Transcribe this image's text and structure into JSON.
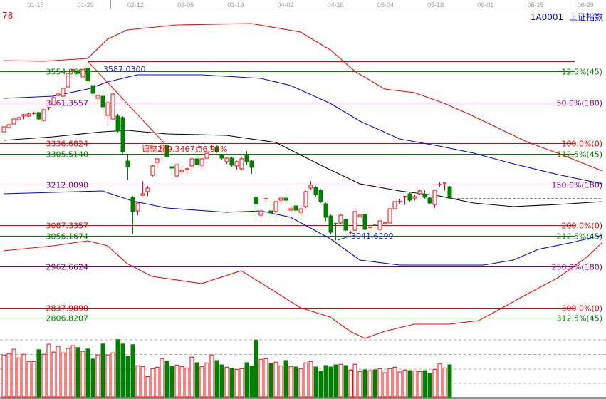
{
  "header": {
    "left_value": "78",
    "symbol": "1A0001",
    "index_name": "上证指数"
  },
  "colors": {
    "up": "#ff0000",
    "down": "#008000",
    "fib_0": "#e00000",
    "fib_12_5": "#008000",
    "fib_50": "#800080",
    "band_outer": "#ff0000",
    "band_inner": "#0000ff",
    "middle": "#000000",
    "annotation_blue": "#2020ff"
  },
  "chart_data": {
    "type": "candlestick",
    "x_tick_labels": [
      "01-15",
      "01-29",
      "02-12",
      "03-05",
      "03-19",
      "04-02",
      "04-18",
      "05-04",
      "05-18",
      "06-01",
      "06-15",
      "06-29"
    ],
    "ohlc_fields": [
      "open",
      "high",
      "low",
      "close"
    ],
    "candles": [
      [
        3371.7,
        3389,
        3367,
        3386.9
      ],
      [
        3384.7,
        3397,
        3382,
        3393.4
      ],
      [
        3395.5,
        3413,
        3393,
        3410.7
      ],
      [
        3408.5,
        3418,
        3406,
        3415
      ],
      [
        3419.4,
        3426,
        3410,
        3423.7
      ],
      [
        3419.4,
        3430,
        3417,
        3425.9
      ],
      [
        3427,
        3432,
        3424,
        3428
      ],
      [
        3430.2,
        3432,
        3408,
        3410.7
      ],
      [
        3406.4,
        3441,
        3404,
        3438.8
      ],
      [
        3443.2,
        3447,
        3437,
        3445.3
      ],
      [
        3454,
        3478,
        3452,
        3475.6
      ],
      [
        3482.1,
        3490,
        3480,
        3486.5
      ],
      [
        3479.9,
        3506,
        3477,
        3503.8
      ],
      [
        3508.1,
        3552,
        3506,
        3549.2
      ],
      [
        3559,
        3575,
        3555,
        3560.1
      ],
      [
        3557.9,
        3568,
        3546,
        3549.2
      ],
      [
        3538.4,
        3570,
        3534,
        3560.1
      ],
      [
        3564.4,
        3587.03,
        3521,
        3527.6
      ],
      [
        3512.4,
        3520,
        3484,
        3488.6
      ],
      [
        3473.5,
        3488,
        3465,
        3482.1
      ],
      [
        3479.9,
        3500,
        3425,
        3447.5
      ],
      [
        3421.5,
        3465,
        3389,
        3460.5
      ],
      [
        3410.7,
        3488,
        3406,
        3486.5
      ],
      [
        3419.4,
        3426,
        3369,
        3373.9
      ],
      [
        3415,
        3419,
        3306,
        3311.1
      ],
      [
        3283,
        3304.6,
        3226.6,
        3265.7
      ],
      [
        3172.6,
        3177,
        3062,
        3129.3
      ],
      [
        3131.5,
        3160,
        3118,
        3155.3
      ],
      [
        3179.1,
        3222,
        3177,
        3183.4
      ],
      [
        3189.9,
        3207,
        3176,
        3200.7
      ],
      [
        3239.6,
        3270,
        3236,
        3267.8
      ],
      [
        3278.6,
        3292,
        3263,
        3289.5
      ],
      [
        3311.1,
        3334,
        3283,
        3330.6
      ],
      [
        3330.6,
        3334,
        3290,
        3295.9
      ],
      [
        3265.7,
        3280,
        3237,
        3261.3
      ],
      [
        3237.5,
        3276,
        3231,
        3272.1
      ],
      [
        3250.5,
        3270,
        3244,
        3254.8
      ],
      [
        3258,
        3265,
        3239,
        3259.2
      ],
      [
        3267.8,
        3294,
        3246,
        3289.5
      ],
      [
        3289.5,
        3311,
        3268,
        3272.1
      ],
      [
        3270,
        3293,
        3257,
        3289.5
      ],
      [
        3291.6,
        3315,
        3285,
        3306.8
      ],
      [
        3324,
        3332,
        3318,
        3326.3
      ],
      [
        3324.1,
        3330,
        3308,
        3311.1
      ],
      [
        3300.3,
        3304,
        3287,
        3291.6
      ],
      [
        3280.8,
        3294,
        3274,
        3291.6
      ],
      [
        3291.6,
        3296,
        3265,
        3270
      ],
      [
        3267.8,
        3284,
        3257,
        3280.8
      ],
      [
        3259.2,
        3293,
        3256,
        3289.5
      ],
      [
        3300.3,
        3313,
        3270,
        3280.8
      ],
      [
        3283,
        3287,
        3244,
        3263.5
      ],
      [
        3172.6,
        3183,
        3112,
        3153.1
      ],
      [
        3118.5,
        3135,
        3110,
        3131.5
      ],
      [
        3167,
        3178,
        3155,
        3168.3
      ],
      [
        3131.5,
        3162,
        3105,
        3125
      ],
      [
        3129.3,
        3163,
        3110,
        3159.6
      ],
      [
        3163.9,
        3175,
        3150,
        3170.4
      ],
      [
        3170.4,
        3185,
        3160,
        3163.9
      ],
      [
        3133.6,
        3150,
        3125,
        3138
      ],
      [
        3146.6,
        3160,
        3130,
        3133.6
      ],
      [
        3127.1,
        3142,
        3117,
        3138
      ],
      [
        3144.5,
        3193,
        3140,
        3189.9
      ],
      [
        3200.7,
        3222,
        3196,
        3209.4
      ],
      [
        3202.9,
        3207,
        3175,
        3181.2
      ],
      [
        3194.2,
        3198,
        3155,
        3159.6
      ],
      [
        3153.1,
        3157,
        3100,
        3112
      ],
      [
        3116.3,
        3120,
        3062,
        3066.5
      ],
      [
        3093,
        3095,
        3041.63,
        3092.5
      ],
      [
        3094.7,
        3122,
        3090,
        3118.5
      ],
      [
        3105.5,
        3108,
        3070,
        3073
      ],
      [
        3066,
        3070,
        3060,
        3066.5
      ],
      [
        3073,
        3140,
        3070,
        3129.3
      ],
      [
        3114.1,
        3122,
        3110,
        3118.5
      ],
      [
        3120.6,
        3123,
        3072,
        3075.2
      ],
      [
        3081,
        3090,
        3062,
        3081.7
      ],
      [
        3088.2,
        3092,
        3060,
        3086
      ],
      [
        3075.2,
        3106,
        3071,
        3101.2
      ],
      [
        3094,
        3100,
        3088,
        3094.7
      ],
      [
        3094.7,
        3140,
        3092,
        3138
      ],
      [
        3138,
        3162,
        3135,
        3159.6
      ],
      [
        3159,
        3168,
        3152,
        3159.6
      ],
      [
        3172.6,
        3177,
        3150,
        3174.8
      ],
      [
        3183.4,
        3187,
        3160,
        3163.9
      ],
      [
        3170.4,
        3180,
        3163,
        3174.8
      ],
      [
        3183.4,
        3196,
        3180,
        3192.1
      ],
      [
        3181.2,
        3194,
        3168,
        3172.6
      ],
      [
        3170.4,
        3174,
        3152,
        3155.3
      ],
      [
        3150.9,
        3196,
        3140,
        3194.2
      ],
      [
        3211,
        3218,
        3205,
        3211.5
      ],
      [
        3213.7,
        3217,
        3193,
        3215.8
      ],
      [
        3205,
        3207,
        3168,
        3170.4
      ]
    ],
    "volume": [
      175,
      181,
      199,
      163,
      178,
      148,
      148,
      197,
      178,
      220,
      187,
      211,
      184,
      202,
      214,
      206,
      190,
      200,
      158,
      175,
      221,
      175,
      184,
      239,
      221,
      170,
      218,
      130,
      127,
      85,
      118,
      124,
      160,
      149,
      128,
      133,
      127,
      121,
      166,
      143,
      127,
      142,
      175,
      152,
      134,
      124,
      119,
      115,
      118,
      143,
      128,
      237,
      157,
      160,
      140,
      145,
      130,
      152,
      127,
      125,
      118,
      142,
      148,
      125,
      107,
      131,
      125,
      134,
      136,
      131,
      112,
      136,
      106,
      113,
      110,
      113,
      118,
      101,
      118,
      124,
      104,
      112,
      110,
      109,
      106,
      110,
      98,
      115,
      139,
      121,
      134
    ],
    "bands": {
      "upper_outer": [
        [
          0,
          3588.2
        ],
        [
          8,
          3586
        ],
        [
          17,
          3594.7
        ],
        [
          21,
          3653.1
        ],
        [
          25,
          3681.3
        ],
        [
          35,
          3696.4
        ],
        [
          50,
          3700.7
        ],
        [
          60,
          3674.8
        ],
        [
          66,
          3620.7
        ],
        [
          71,
          3555.7
        ],
        [
          77,
          3501.6
        ],
        [
          83,
          3490.8
        ],
        [
          89,
          3458.3
        ],
        [
          94,
          3425.9
        ],
        [
          100,
          3382.6
        ],
        [
          106,
          3339.3
        ],
        [
          112,
          3306.8
        ],
        [
          121,
          3252.7
        ]
      ],
      "upper_inner": [
        [
          0,
          3473.5
        ],
        [
          10,
          3479.9
        ],
        [
          17,
          3501.6
        ],
        [
          21,
          3523.2
        ],
        [
          27,
          3544.9
        ],
        [
          40,
          3544.9
        ],
        [
          52,
          3534.1
        ],
        [
          58,
          3512.4
        ],
        [
          66,
          3458.3
        ],
        [
          72,
          3404.2
        ],
        [
          80,
          3350.1
        ],
        [
          88,
          3328.4
        ],
        [
          95,
          3306.8
        ],
        [
          103,
          3274.3
        ],
        [
          112,
          3241.9
        ],
        [
          121,
          3213.7
        ]
      ],
      "middle": [
        [
          0,
          3345.8
        ],
        [
          10,
          3356.6
        ],
        [
          20,
          3371.7
        ],
        [
          25,
          3376.1
        ],
        [
          33,
          3365.3
        ],
        [
          45,
          3360.9
        ],
        [
          55,
          3339.3
        ],
        [
          65,
          3263.5
        ],
        [
          72,
          3213.7
        ],
        [
          80,
          3192.1
        ],
        [
          88,
          3176.9
        ],
        [
          95,
          3155.3
        ],
        [
          103,
          3144.5
        ],
        [
          112,
          3150.9
        ],
        [
          121,
          3159.6
        ]
      ],
      "lower_inner": [
        [
          0,
          3183.4
        ],
        [
          10,
          3187.7
        ],
        [
          20,
          3192.1
        ],
        [
          26,
          3161.8
        ],
        [
          33,
          3140.2
        ],
        [
          45,
          3127.1
        ],
        [
          52,
          3131.5
        ],
        [
          58,
          3112
        ],
        [
          66,
          3047.1
        ],
        [
          72,
          2982.1
        ],
        [
          80,
          2967
        ],
        [
          90,
          2967
        ],
        [
          97,
          2967
        ],
        [
          103,
          2982.1
        ],
        [
          108,
          3014.6
        ],
        [
          115,
          3036.2
        ],
        [
          121,
          3057.9
        ]
      ],
      "lower_outer": [
        [
          0,
          3010.3
        ],
        [
          10,
          3025.4
        ],
        [
          17,
          3040.6
        ],
        [
          21,
          3025.4
        ],
        [
          25,
          2971.3
        ],
        [
          30,
          2932.3
        ],
        [
          40,
          2910.7
        ],
        [
          48,
          2949.7
        ],
        [
          55,
          2884.7
        ],
        [
          60,
          2837.1
        ],
        [
          66,
          2809
        ],
        [
          70,
          2765.7
        ],
        [
          73,
          2744.1
        ],
        [
          77,
          2765.7
        ],
        [
          83,
          2787.3
        ],
        [
          90,
          2787.3
        ],
        [
          96,
          2798.1
        ],
        [
          100,
          2830.6
        ],
        [
          106,
          2880.4
        ],
        [
          112,
          2928
        ],
        [
          118,
          2993
        ],
        [
          121,
          3036.2
        ]
      ]
    },
    "last_price_line": 3170.4,
    "fib_levels": [
      {
        "price": 3586.03,
        "left_label": "",
        "right_label": "",
        "kind": "fib_0"
      },
      {
        "price": 3554.8607,
        "left_label": "3554.8607",
        "right_label": "12.5%(45)",
        "kind": "fib_12_5"
      },
      {
        "price": 3461.3557,
        "left_label": "3461.3557",
        "right_label": "50.0%(180)",
        "kind": "fib_50"
      },
      {
        "price": 3336.6824,
        "left_label": "3336.6824",
        "right_label": "100.0%(0)",
        "kind": "fib_0"
      },
      {
        "price": 3305.514,
        "left_label": "3305.5140",
        "right_label": "112.5%(45)",
        "kind": "fib_12_5"
      },
      {
        "price": 3212.009,
        "left_label": "3212.0090",
        "right_label": "150.0%(180)",
        "kind": "fib_50"
      },
      {
        "price": 3087.3357,
        "left_label": "3087.3357",
        "right_label": "200.0%(0)",
        "kind": "fib_0"
      },
      {
        "price": 3056.1674,
        "left_label": "3056.1674",
        "right_label": "212.5%(45)",
        "kind": "fib_12_5"
      },
      {
        "price": 2962.6624,
        "left_label": "2962.6624",
        "right_label": "250.0%(180)",
        "kind": "fib_50"
      },
      {
        "price": 2837.989,
        "left_label": "2837.9890",
        "right_label": "300.0%(0)",
        "kind": "fib_0"
      },
      {
        "price": 2806.8207,
        "left_label": "2806.8207",
        "right_label": "312.5%(45)",
        "kind": "fib_12_5"
      }
    ],
    "annotations": {
      "high_label": "3587.0300",
      "low_label": "3041.6299",
      "adjustment_label": "调整249.3467点6.95%",
      "trend_line": {
        "from": [
          17,
          3586.03
        ],
        "to": [
          32.5,
          3336.6824
        ]
      }
    }
  }
}
